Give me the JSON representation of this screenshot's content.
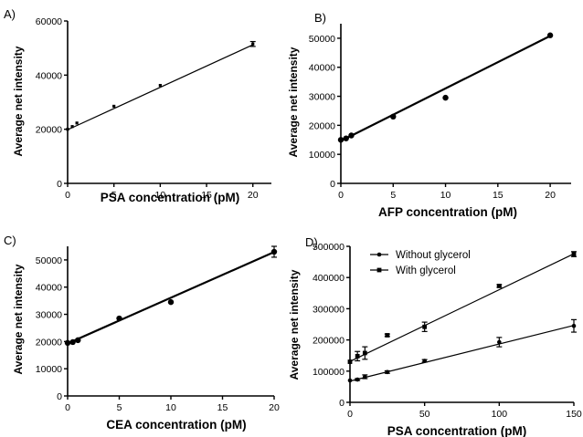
{
  "chart_data": [
    {
      "panel": "A)",
      "type": "scatter",
      "xlabel": "PSA concentration (pM)",
      "ylabel": "Average net intensity",
      "xlim": [
        0,
        22
      ],
      "ylim": [
        0,
        60000
      ],
      "xticks": [
        0,
        5,
        10,
        15,
        20
      ],
      "yticks": [
        0,
        20000,
        40000,
        60000
      ],
      "grid": false,
      "series": [
        {
          "marker": "square-small",
          "x": [
            0,
            0.5,
            1,
            5,
            10,
            20
          ],
          "y": [
            20000,
            21000,
            22300,
            28500,
            36200,
            51500
          ],
          "yerr": [
            0,
            0,
            0,
            0,
            0,
            900
          ],
          "fit": [
            19800,
            1570
          ]
        }
      ]
    },
    {
      "panel": "B)",
      "type": "scatter",
      "xlabel": "AFP concentration (pM)",
      "ylabel": "Average net intensity",
      "xlim": [
        0,
        22
      ],
      "ylim": [
        0,
        55000
      ],
      "xticks": [
        0,
        5,
        10,
        15,
        20
      ],
      "yticks": [
        0,
        10000,
        20000,
        30000,
        40000,
        50000
      ],
      "grid": false,
      "series": [
        {
          "marker": "circle",
          "x": [
            0,
            0.5,
            1,
            5,
            10,
            20
          ],
          "y": [
            15000,
            15500,
            16500,
            23000,
            29500,
            51000
          ],
          "yerr": [
            0,
            0,
            0,
            0,
            0,
            0
          ],
          "fit": [
            14600,
            1810
          ]
        }
      ]
    },
    {
      "panel": "C)",
      "type": "scatter",
      "xlabel": "CEA concentration (pM)",
      "ylabel": "Average net intensity",
      "xlim": [
        0,
        20
      ],
      "ylim": [
        0,
        55000
      ],
      "xticks": [
        0,
        5,
        10,
        15,
        20
      ],
      "yticks": [
        0,
        10000,
        20000,
        30000,
        40000,
        50000
      ],
      "grid": false,
      "series": [
        {
          "marker": "circle",
          "x": [
            0,
            0.5,
            1,
            5,
            10,
            20
          ],
          "y": [
            19500,
            19800,
            20500,
            28500,
            34500,
            53000
          ],
          "yerr": [
            0,
            0,
            0,
            0,
            0,
            2000
          ],
          "fit": [
            19300,
            1680
          ]
        }
      ]
    },
    {
      "panel": "D)",
      "type": "scatter",
      "xlabel": "PSA concentration (pM)",
      "ylabel": "Average net intensity",
      "xlim": [
        0,
        150
      ],
      "ylim": [
        0,
        500000
      ],
      "xticks": [
        0,
        50,
        100,
        150
      ],
      "yticks": [
        0,
        100000,
        200000,
        300000,
        400000,
        500000
      ],
      "grid": false,
      "legend": "top-left",
      "series": [
        {
          "name": "Without glycerol",
          "marker": "circle",
          "x": [
            0,
            5,
            10,
            25,
            50,
            100,
            150
          ],
          "y": [
            70000,
            73000,
            82000,
            97000,
            133000,
            193000,
            245000
          ],
          "yerr": [
            0,
            3000,
            6000,
            4000,
            4000,
            15000,
            20000
          ],
          "fit": [
            68000,
            1190
          ]
        },
        {
          "name": "With glycerol",
          "marker": "square",
          "x": [
            0,
            5,
            10,
            25,
            50,
            100,
            150
          ],
          "y": [
            130000,
            148000,
            158000,
            215000,
            242000,
            373000,
            475000
          ],
          "yerr": [
            0,
            15000,
            20000,
            4000,
            15000,
            4000,
            8000
          ],
          "fit": [
            131000,
            2300
          ]
        }
      ]
    }
  ]
}
